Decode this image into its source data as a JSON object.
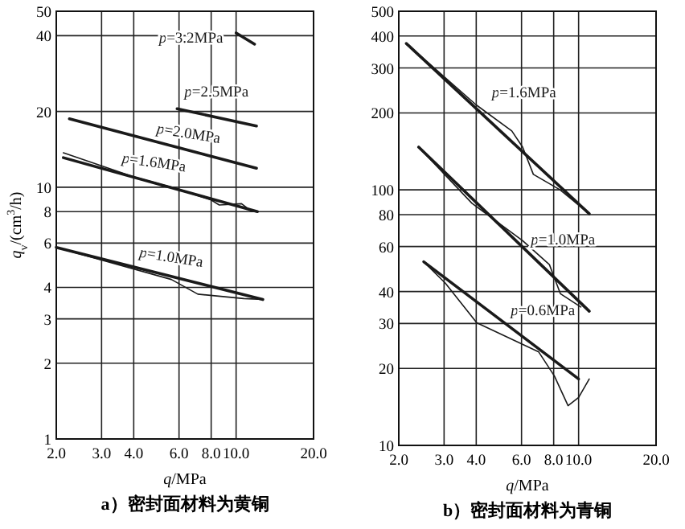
{
  "chart_data": [
    {
      "type": "line",
      "title": "a）密封面材料为黄铜",
      "xlabel": "*q*/MPa",
      "ylabel": "*q*$_{v}$/(cm$^{3}$/h)",
      "log": "xy",
      "grid": true,
      "xlim": [
        2,
        20
      ],
      "xticks": [
        {
          "value": 2,
          "label": "2.0"
        },
        {
          "value": 3,
          "label": "3.0"
        },
        {
          "value": 4,
          "label": "4.0"
        },
        {
          "value": 6,
          "label": "6.0"
        },
        {
          "value": 8,
          "label": "8.0"
        },
        {
          "value": 10,
          "label": "10.0"
        },
        {
          "value": 20,
          "label": "20.0"
        }
      ],
      "ylim": [
        1,
        50
      ],
      "yticks": [
        1,
        2,
        3,
        4,
        6,
        8,
        10,
        20,
        40,
        50
      ],
      "series": [
        {
          "name": "*p*=3.2MPa",
          "color": "#1a1a1a",
          "x": [
            10,
            11.8
          ],
          "values": [
            41,
            37
          ]
        },
        {
          "name": "*p*=2.5MPa",
          "color": "#1a1a1a",
          "x": [
            5.9,
            12
          ],
          "values": [
            20.5,
            17.5
          ]
        },
        {
          "name": "*p*=2.0MPa",
          "color": "#1a1a1a",
          "x": [
            2.25,
            12
          ],
          "values": [
            18.7,
            11.9
          ]
        },
        {
          "name": "*p*=1.6MPa",
          "color": "#1a1a1a",
          "x": [
            2.13,
            12.1
          ],
          "values": [
            13.1,
            8.0
          ]
        },
        {
          "color": "#1a1a1a",
          "x": [
            2.13,
            4,
            6,
            8,
            8.6,
            10.5,
            11.5
          ],
          "values": [
            13.7,
            11,
            9.8,
            8.9,
            8.5,
            8.6,
            8.0
          ]
        },
        {
          "name": "*p*=1.0MPa",
          "color": "#1a1a1a",
          "x": [
            2,
            12.7
          ],
          "values": [
            5.77,
            3.58
          ]
        },
        {
          "color": "#1a1a1a",
          "x": [
            2,
            5.6,
            7.1,
            10.7,
            12.7
          ],
          "values": [
            5.77,
            4.3,
            3.76,
            3.61,
            3.58
          ]
        }
      ]
    },
    {
      "type": "line",
      "title": "b）密封面材料为青铜",
      "xlabel": "*q*/MPa",
      "log": "xy",
      "grid": true,
      "xlim": [
        2,
        20
      ],
      "xticks": [
        {
          "value": 2,
          "label": "2.0"
        },
        {
          "value": 3,
          "label": "3.0"
        },
        {
          "value": 4,
          "label": "4.0"
        },
        {
          "value": 6,
          "label": "6.0"
        },
        {
          "value": 8,
          "label": "8.0"
        },
        {
          "value": 10,
          "label": "10.0"
        },
        {
          "value": 20,
          "label": "20.0"
        }
      ],
      "ylim": [
        10,
        500
      ],
      "yticks": [
        10,
        20,
        30,
        40,
        60,
        80,
        100,
        200,
        300,
        400,
        500
      ],
      "series": [
        {
          "name": "*p*=1.6MPa",
          "color": "#1a1a1a",
          "x": [
            2.14,
            11
          ],
          "values": [
            374,
            80.6
          ]
        },
        {
          "color": "#1a1a1a",
          "x": [
            2.14,
            4,
            5.5,
            6.06,
            6.67,
            8.47,
            11
          ],
          "values": [
            374,
            215,
            170,
            147,
            115,
            100,
            80.6
          ]
        },
        {
          "name": "*p*=1.0MPa",
          "color": "#1a1a1a",
          "x": [
            2.39,
            11
          ],
          "values": [
            147,
            33.5
          ]
        },
        {
          "color": "#1a1a1a",
          "x": [
            2.39,
            3.85,
            6.06,
            7.7,
            8.5,
            10.2
          ],
          "values": [
            147,
            88.6,
            63.3,
            51,
            39.2,
            34.8
          ]
        },
        {
          "name": "*p*=0.6MPa",
          "color": "#1a1a1a",
          "x": [
            2.5,
            10
          ],
          "values": [
            52.3,
            18.2
          ]
        },
        {
          "color": "#1a1a1a",
          "x": [
            2.5,
            3.03,
            4.02,
            7,
            8.05,
            9.1,
            10,
            11
          ],
          "values": [
            52.3,
            43.2,
            30.2,
            23.2,
            18.7,
            14.3,
            15.4,
            18.2
          ]
        }
      ]
    }
  ]
}
